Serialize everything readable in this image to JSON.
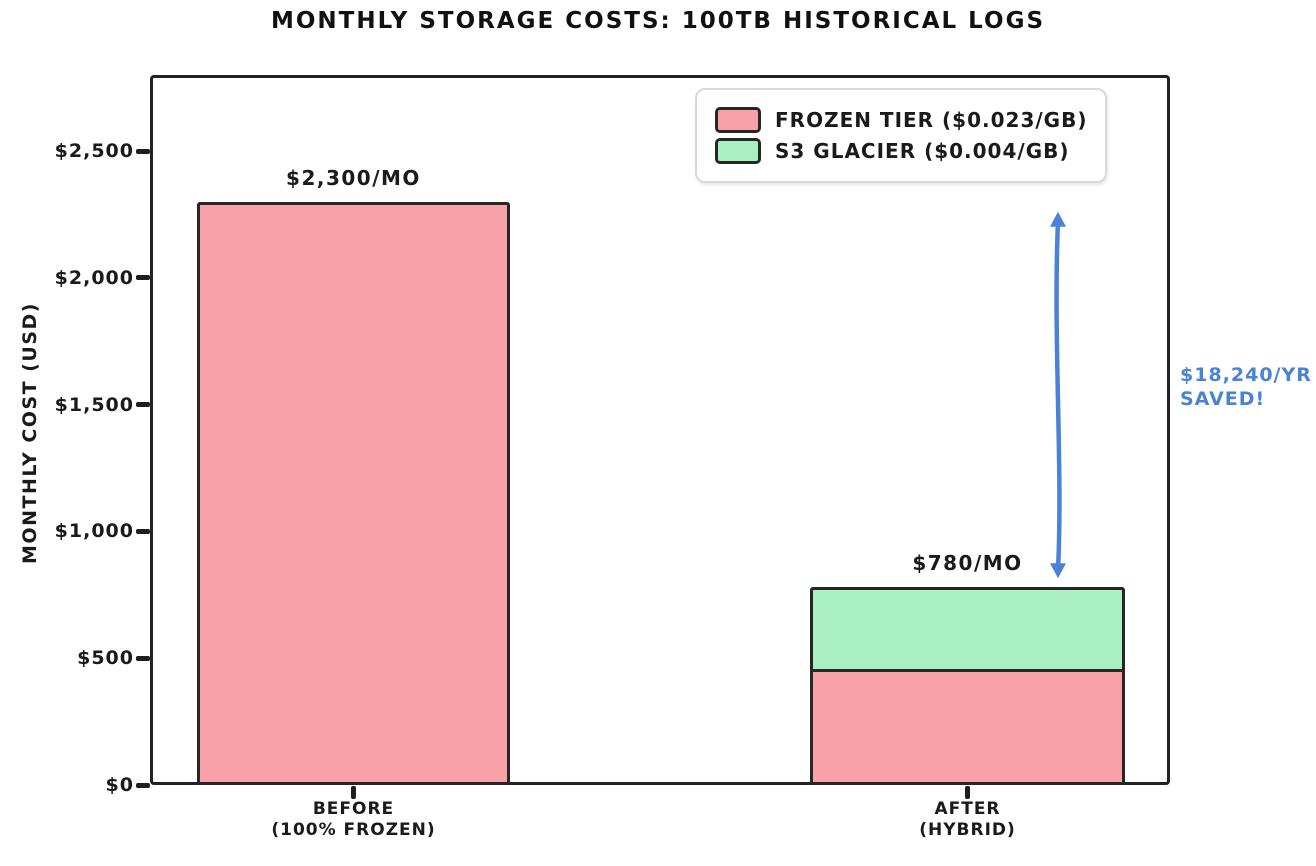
{
  "chart_data": {
    "type": "bar",
    "stacked": true,
    "title": "MONTHLY STORAGE COSTS: 100TB HISTORICAL LOGS",
    "xlabel": "",
    "ylabel": "MONTHLY COST (USD)",
    "ylim": [
      0,
      2800
    ],
    "grid": false,
    "legend_position": "upper right",
    "categories": [
      {
        "line1": "BEFORE",
        "line2": "(100% FROZEN)"
      },
      {
        "line1": "AFTER",
        "line2": "(HYBRID)"
      }
    ],
    "series": [
      {
        "name": "FROZEN TIER ($0.023/GB)",
        "color": "#f9a1a8",
        "values": [
          2300,
          460
        ]
      },
      {
        "name": "S3 GLACIER ($0.004/GB)",
        "color": "#a9f0c0",
        "values": [
          0,
          320
        ]
      }
    ],
    "totals": [
      2300,
      780
    ],
    "bar_labels": [
      "$2,300/MO",
      "$780/MO"
    ],
    "yticks": {
      "values": [
        0,
        500,
        1000,
        1500,
        2000,
        2500
      ],
      "labels": [
        "$0",
        "$500",
        "$1,000",
        "$1,500",
        "$2,000",
        "$2,500"
      ]
    },
    "edge_color": "#262626",
    "annotation": {
      "line1": "$18,240/YR",
      "line2": "SAVED!",
      "color": "#4a82d6",
      "arrow_from_value": 780,
      "arrow_to_value": 2300
    }
  }
}
